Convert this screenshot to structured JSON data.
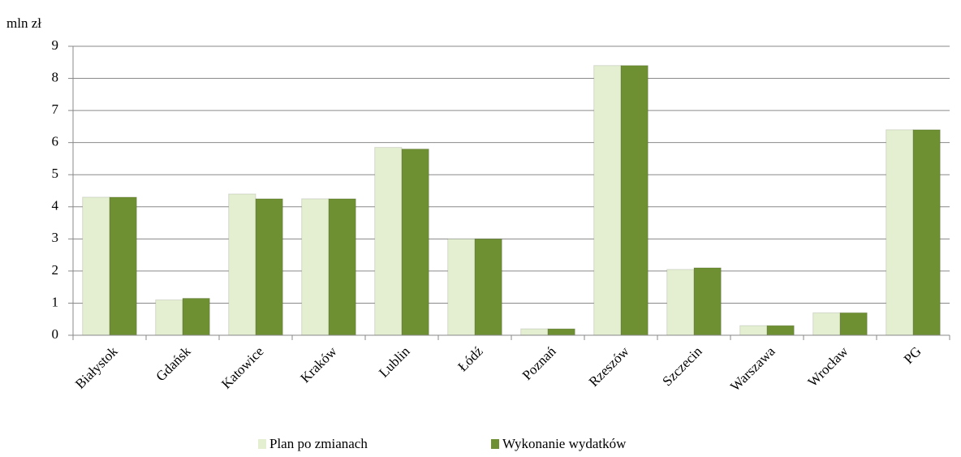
{
  "chart_data": {
    "type": "bar",
    "y_label": "mln zł",
    "categories": [
      "Białystok",
      "Gdańsk",
      "Katowice",
      "Kraków",
      "Lublin",
      "Łódź",
      "Poznań",
      "Rzeszów",
      "Szczecin",
      "Warszawa",
      "Wrocław",
      "PG"
    ],
    "series": [
      {
        "name": "Plan po zmianach",
        "color": "#e4efd2",
        "values": [
          4.3,
          1.1,
          4.4,
          4.25,
          5.85,
          3.0,
          0.2,
          8.4,
          2.05,
          0.3,
          0.7,
          6.4
        ]
      },
      {
        "name": "Wykonanie wydatków",
        "color": "#6e8f32",
        "values": [
          4.3,
          1.15,
          4.25,
          4.25,
          5.8,
          3.0,
          0.2,
          8.4,
          2.1,
          0.3,
          0.7,
          6.4
        ]
      }
    ],
    "ylim": [
      0,
      9
    ],
    "yticks": [
      0,
      1,
      2,
      3,
      4,
      5,
      6,
      7,
      8,
      9
    ],
    "grid": true,
    "legend": "bottom"
  }
}
